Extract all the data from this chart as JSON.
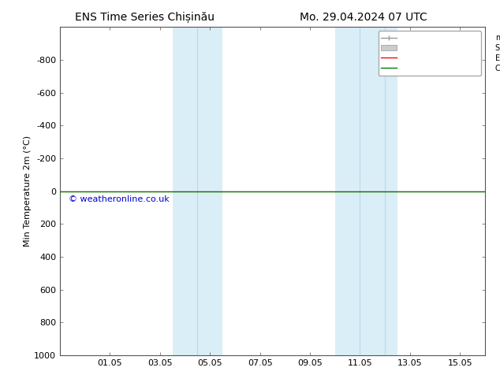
{
  "title_left": "ENS Time Series Chișinău",
  "title_right": "Mo. 29.04.2024 07 UTC",
  "ylabel": "Min Temperature 2m (°C)",
  "background_color": "#ffffff",
  "plot_bg_color": "#ffffff",
  "control_run_color": "#008000",
  "ensemble_mean_color": "#ff0000",
  "minmax_color": "#999999",
  "std_dev_color": "#cccccc",
  "watermark": "© weatheronline.co.uk",
  "watermark_color": "#0000cc",
  "band_color": "#daeef8",
  "band1_xmin": 4.5,
  "band1_xmax": 6.5,
  "band2_xmin": 11.0,
  "band2_xmax": 13.5,
  "band_inner_lines1": [
    5.5
  ],
  "band_inner_lines2": [
    12.0,
    13.0
  ],
  "yticks": [
    -800,
    -600,
    -400,
    -200,
    0,
    200,
    400,
    600,
    800,
    1000
  ],
  "xtick_positions": [
    2,
    4,
    6,
    8,
    10,
    12,
    14,
    16
  ],
  "xtick_labels": [
    "01.05",
    "03.05",
    "05.05",
    "07.05",
    "09.05",
    "11.05",
    "13.05",
    "15.05"
  ],
  "xlim_min": 0,
  "xlim_max": 17,
  "ylim_min": -1000,
  "ylim_max": 1000,
  "control_y_value": 0,
  "title_fontsize": 10,
  "axis_fontsize": 8,
  "tick_fontsize": 8,
  "legend_fontsize": 7
}
